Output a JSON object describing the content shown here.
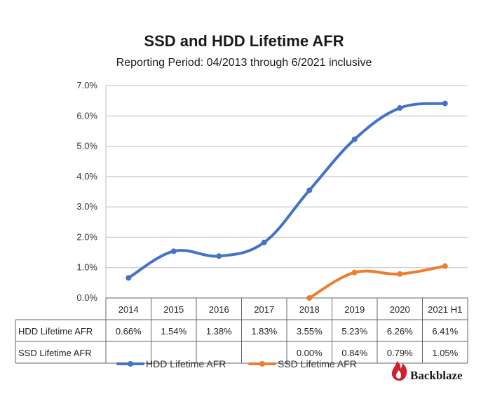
{
  "chart_data": {
    "type": "line",
    "title": "SSD and HDD Lifetime AFR",
    "subtitle": "Reporting Period: 04/2013 through 6/2021 inclusive",
    "categories": [
      "2014",
      "2015",
      "2016",
      "2017",
      "2018",
      "2019",
      "2020",
      "2021 H1"
    ],
    "ylim": [
      0,
      7
    ],
    "yticks": [
      "0.0%",
      "1.0%",
      "2.0%",
      "3.0%",
      "4.0%",
      "5.0%",
      "6.0%",
      "7.0%"
    ],
    "grid": true,
    "legend_position": "bottom",
    "series": [
      {
        "name": "HDD Lifetime AFR",
        "color": "#4472C4",
        "values": [
          0.66,
          1.54,
          1.38,
          1.83,
          3.55,
          5.23,
          6.26,
          6.41
        ],
        "labels": [
          "0.66%",
          "1.54%",
          "1.38%",
          "1.83%",
          "3.55%",
          "5.23%",
          "6.26%",
          "6.41%"
        ]
      },
      {
        "name": "SSD Lifetime AFR",
        "color": "#ED7D31",
        "values": [
          null,
          null,
          null,
          null,
          0.0,
          0.84,
          0.79,
          1.05
        ],
        "labels": [
          "",
          "",
          "",
          "",
          "0.00%",
          "0.84%",
          "0.79%",
          "1.05%"
        ]
      }
    ]
  },
  "brand": {
    "name": "Backblaze",
    "color": "#D0202E",
    "icon": "flame-icon"
  }
}
